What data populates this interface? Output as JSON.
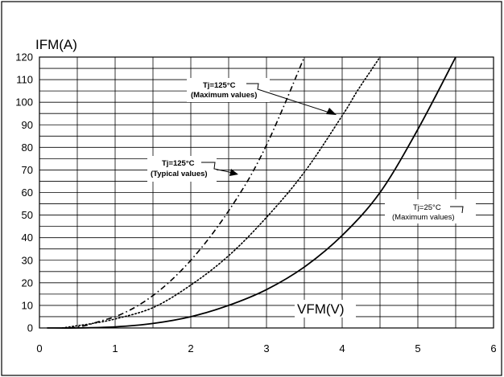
{
  "chart_data": {
    "type": "line",
    "title": "",
    "ylabel": "IFM(A)",
    "xlabel": "VFM(V)",
    "xlim": [
      0,
      6
    ],
    "ylim": [
      0,
      120
    ],
    "x_ticks": [
      "0",
      "1",
      "2",
      "3",
      "4",
      "5",
      "6"
    ],
    "y_ticks": [
      "0",
      "10",
      "20",
      "30",
      "40",
      "50",
      "60",
      "70",
      "80",
      "90",
      "100",
      "110",
      "120"
    ],
    "grid": true,
    "series": [
      {
        "name": "Tj=125°C (Typical values)",
        "style": "dashdot",
        "x": [
          0.4,
          0.6,
          0.8,
          1.0,
          1.2,
          1.4,
          1.6,
          1.8,
          2.0,
          2.2,
          2.4,
          2.6,
          2.8,
          3.0,
          3.2,
          3.4,
          3.5
        ],
        "y": [
          0,
          1,
          3,
          5,
          8,
          12,
          17,
          23,
          30,
          38,
          47,
          57,
          68,
          81,
          96,
          112,
          120
        ]
      },
      {
        "name": "Tj=125°C (Maximum values)",
        "style": "dotted",
        "x": [
          0.3,
          0.5,
          0.7,
          1.0,
          1.5,
          2.0,
          2.5,
          3.0,
          3.5,
          4.0,
          4.2,
          4.4,
          4.5
        ],
        "y": [
          0,
          1,
          2,
          4,
          9,
          19,
          32,
          49,
          69,
          94,
          105,
          115,
          120
        ]
      },
      {
        "name": "Tj=25°C (Maximum values)",
        "style": "solid",
        "x": [
          0.1,
          0.5,
          1.0,
          1.5,
          2.0,
          2.5,
          3.0,
          3.5,
          4.0,
          4.5,
          5.0,
          5.5
        ],
        "y": [
          0,
          0,
          0.5,
          2,
          5,
          10,
          17,
          27,
          41,
          60,
          88,
          120
        ]
      }
    ],
    "annotations": [
      {
        "line1": "Tj=125°C",
        "line2": "(Maximum values)",
        "bold": true
      },
      {
        "line1": "Tj=125°C",
        "line2": "(Typical values)",
        "bold": true
      },
      {
        "line1": "Tj=25°C",
        "line2": "(Maximum values)",
        "bold": false
      }
    ]
  }
}
